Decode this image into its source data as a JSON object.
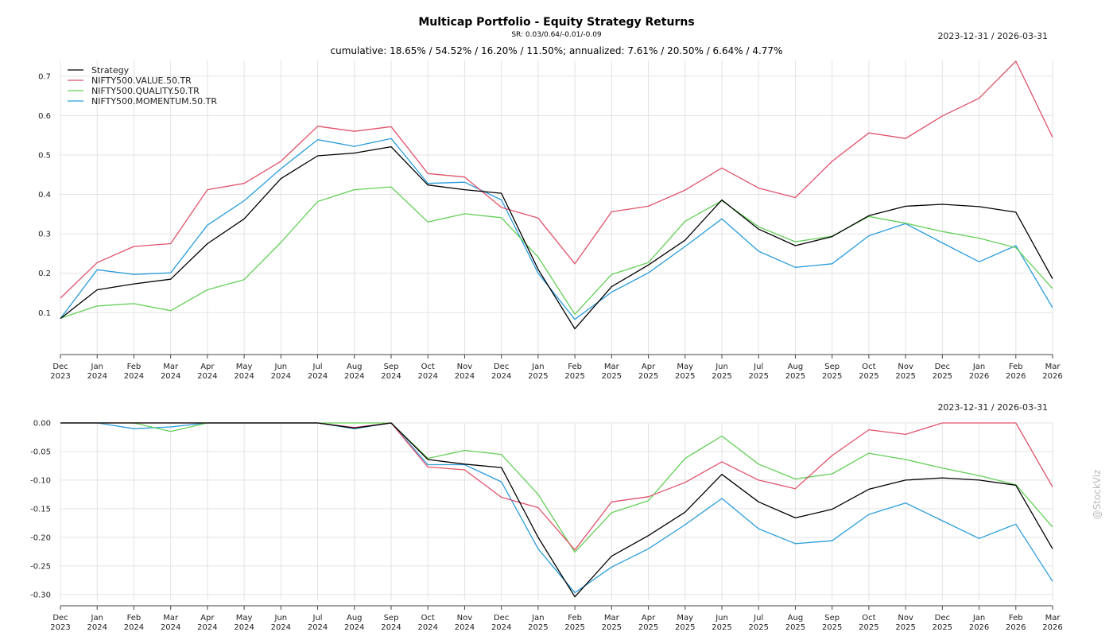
{
  "header": {
    "title": "Multicap Portfolio - Equity Strategy Returns",
    "subtitle": "SR: 0.03/0.64/-0.01/-0.09",
    "stats": "cumulative: 18.65% / 54.52% / 16.20% / 11.50%; annualized: 7.61% / 20.50% / 6.64% / 4.77%",
    "date_range_top": "2023-12-31 / 2026-03-31",
    "date_range_bottom": "2023-12-31 / 2026-03-31",
    "watermark": "@StockViz"
  },
  "colors": {
    "Strategy": "#000000",
    "NIFTY500.VALUE.50.TR": "#e0526b",
    "NIFTY500.QUALITY.50.TR": "#63cf57",
    "NIFTY500.MOMENTUM.50.TR": "#2a9ddc"
  },
  "chart_data": [
    {
      "type": "line",
      "panel": "cumulative returns",
      "title": "Multicap Portfolio - Equity Strategy Returns",
      "x": [
        "Dec 2023",
        "Jan 2024",
        "Feb 2024",
        "Mar 2024",
        "Apr 2024",
        "May 2024",
        "Jun 2024",
        "Jul 2024",
        "Aug 2024",
        "Sep 2024",
        "Oct 2024",
        "Nov 2024",
        "Dec 2024",
        "Jan 2025",
        "Feb 2025",
        "Mar 2025",
        "Apr 2025",
        "May 2025",
        "Jun 2025",
        "Jul 2025",
        "Aug 2025",
        "Sep 2025",
        "Oct 2025",
        "Nov 2025",
        "Dec 2025",
        "Jan 2026",
        "Feb 2026",
        "Mar 2026"
      ],
      "ylim": [
        0.03,
        0.74
      ],
      "yticks": [
        "0.1",
        "0.2",
        "0.3",
        "0.4",
        "0.5",
        "0.6",
        "0.7"
      ],
      "legend_position": "top-left",
      "grid": true,
      "series": [
        {
          "name": "Strategy",
          "values": [
            0.085,
            0.158,
            0.173,
            0.185,
            0.275,
            0.338,
            0.44,
            0.498,
            0.505,
            0.521,
            0.424,
            0.412,
            0.403,
            0.21,
            0.059,
            0.166,
            0.221,
            0.284,
            0.386,
            0.312,
            0.27,
            0.293,
            0.346,
            0.37,
            0.375,
            0.369,
            0.355,
            0.186
          ]
        },
        {
          "name": "NIFTY500.VALUE.50.TR",
          "values": [
            0.137,
            0.227,
            0.268,
            0.275,
            0.412,
            0.428,
            0.484,
            0.573,
            0.56,
            0.572,
            0.453,
            0.444,
            0.367,
            0.34,
            0.224,
            0.356,
            0.37,
            0.411,
            0.467,
            0.416,
            0.392,
            0.484,
            0.556,
            0.542,
            0.599,
            0.644,
            0.738,
            0.545
          ]
        },
        {
          "name": "NIFTY500.QUALITY.50.TR",
          "values": [
            0.086,
            0.117,
            0.123,
            0.105,
            0.158,
            0.184,
            0.278,
            0.382,
            0.412,
            0.419,
            0.33,
            0.351,
            0.341,
            0.241,
            0.096,
            0.197,
            0.227,
            0.332,
            0.384,
            0.318,
            0.28,
            0.294,
            0.344,
            0.327,
            0.306,
            0.289,
            0.265,
            0.161
          ]
        },
        {
          "name": "NIFTY500.MOMENTUM.50.TR",
          "values": [
            0.085,
            0.209,
            0.197,
            0.201,
            0.322,
            0.384,
            0.465,
            0.539,
            0.522,
            0.542,
            0.428,
            0.431,
            0.386,
            0.2,
            0.083,
            0.152,
            0.201,
            0.268,
            0.338,
            0.256,
            0.215,
            0.224,
            0.295,
            0.326,
            0.277,
            0.229,
            0.27,
            0.113
          ]
        }
      ]
    },
    {
      "type": "line",
      "panel": "drawdowns",
      "x": [
        "Dec 2023",
        "Jan 2024",
        "Feb 2024",
        "Mar 2024",
        "Apr 2024",
        "May 2024",
        "Jun 2024",
        "Jul 2024",
        "Aug 2024",
        "Sep 2024",
        "Oct 2024",
        "Nov 2024",
        "Dec 2024",
        "Jan 2025",
        "Feb 2025",
        "Mar 2025",
        "Apr 2025",
        "May 2025",
        "Jun 2025",
        "Jul 2025",
        "Aug 2025",
        "Sep 2025",
        "Oct 2025",
        "Nov 2025",
        "Dec 2025",
        "Jan 2026",
        "Feb 2026",
        "Mar 2026"
      ],
      "ylim": [
        -0.31,
        0.0
      ],
      "yticks": [
        "0.00",
        "-0.05",
        "-0.10",
        "-0.15",
        "-0.20",
        "-0.25",
        "-0.30"
      ],
      "grid": true,
      "series": [
        {
          "name": "Strategy",
          "values": [
            0.0,
            0.0,
            0.0,
            0.0,
            0.0,
            0.0,
            0.0,
            0.0,
            -0.009,
            0.0,
            -0.064,
            -0.072,
            -0.078,
            -0.2,
            -0.304,
            -0.233,
            -0.197,
            -0.156,
            -0.09,
            -0.138,
            -0.166,
            -0.151,
            -0.116,
            -0.1,
            -0.096,
            -0.1,
            -0.109,
            -0.22
          ]
        },
        {
          "name": "NIFTY500.VALUE.50.TR",
          "values": [
            0.0,
            0.0,
            0.0,
            0.0,
            0.0,
            0.0,
            0.0,
            0.0,
            -0.008,
            0.0,
            -0.077,
            -0.082,
            -0.13,
            -0.148,
            -0.222,
            -0.138,
            -0.129,
            -0.104,
            -0.068,
            -0.1,
            -0.115,
            -0.057,
            -0.012,
            -0.02,
            0.0,
            0.0,
            0.0,
            -0.112
          ]
        },
        {
          "name": "NIFTY500.QUALITY.50.TR",
          "values": [
            0.0,
            0.0,
            0.0,
            -0.015,
            0.0,
            0.0,
            0.0,
            0.0,
            0.0,
            0.0,
            -0.062,
            -0.048,
            -0.055,
            -0.125,
            -0.226,
            -0.157,
            -0.136,
            -0.062,
            -0.023,
            -0.072,
            -0.098,
            -0.089,
            -0.053,
            -0.064,
            -0.079,
            -0.092,
            -0.108,
            -0.182
          ]
        },
        {
          "name": "NIFTY500.MOMENTUM.50.TR",
          "values": [
            0.0,
            0.0,
            -0.01,
            -0.007,
            0.0,
            0.0,
            0.0,
            0.0,
            -0.01,
            0.0,
            -0.073,
            -0.073,
            -0.103,
            -0.22,
            -0.297,
            -0.252,
            -0.22,
            -0.178,
            -0.132,
            -0.185,
            -0.211,
            -0.206,
            -0.16,
            -0.14,
            -0.171,
            -0.202,
            -0.177,
            -0.277
          ]
        }
      ]
    }
  ]
}
